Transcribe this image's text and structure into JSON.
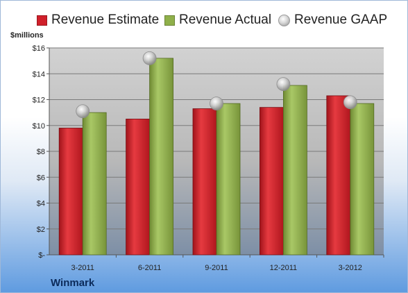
{
  "units_label": "$millions",
  "company": "Winmark",
  "colors": {
    "estimate": "#d0202a",
    "actual": "#8fb04a",
    "gaap": "#c8c8c8",
    "plot_bg": "#c9c9c9",
    "grid": "#7a7a7a"
  },
  "chart_data": {
    "type": "bar",
    "categories": [
      "3-2011",
      "6-2011",
      "9-2011",
      "12-2011",
      "3-2012"
    ],
    "series": [
      {
        "name": "Revenue Estimate",
        "values": [
          9.8,
          10.5,
          11.3,
          11.4,
          12.3
        ]
      },
      {
        "name": "Revenue Actual",
        "values": [
          11.0,
          15.2,
          11.7,
          13.1,
          11.7
        ]
      },
      {
        "name": "Revenue GAAP",
        "values": [
          11.1,
          15.2,
          11.7,
          13.2,
          11.8
        ]
      }
    ],
    "yticks": [
      "$-",
      "$2",
      "$4",
      "$6",
      "$8",
      "$10",
      "$12",
      "$14",
      "$16"
    ],
    "ylim": [
      0,
      16
    ],
    "ystep": 2,
    "grid": true,
    "legend": "top"
  }
}
